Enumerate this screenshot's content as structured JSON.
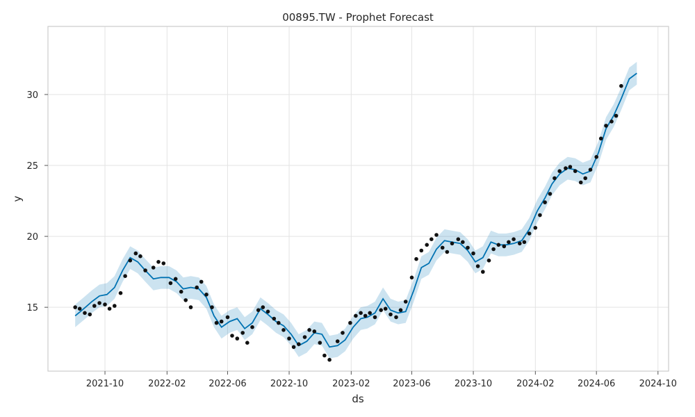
{
  "chart_data": {
    "type": "line",
    "title": "00895.TW - Prophet Forecast",
    "xlabel": "ds",
    "ylabel": "y",
    "xlim": [
      "2021-06-10",
      "2024-10-22"
    ],
    "ylim": [
      10.5,
      34.8
    ],
    "x_ticks": [
      "2021-10",
      "2022-02",
      "2022-06",
      "2022-10",
      "2023-02",
      "2023-06",
      "2023-10",
      "2024-02",
      "2024-06",
      "2024-10"
    ],
    "y_ticks": [
      15,
      20,
      25,
      30
    ],
    "grid": true,
    "colors": {
      "forecast": "#0072b2",
      "observed": "#111111",
      "grid": "#e3e3e3"
    },
    "series": [
      {
        "type": "line",
        "x": [
          "2021-08-03",
          "2021-08-20",
          "2021-09-05",
          "2021-09-20",
          "2021-10-05",
          "2021-10-20",
          "2021-11-05",
          "2021-11-20",
          "2021-12-05",
          "2021-12-20",
          "2022-01-05",
          "2022-01-20",
          "2022-02-05",
          "2022-02-20",
          "2022-03-05",
          "2022-03-20",
          "2022-04-05",
          "2022-04-20",
          "2022-05-05",
          "2022-05-20",
          "2022-06-05",
          "2022-06-20",
          "2022-07-05",
          "2022-07-20",
          "2022-08-05",
          "2022-08-20",
          "2022-09-05",
          "2022-09-20",
          "2022-10-05",
          "2022-10-20",
          "2022-11-05",
          "2022-11-20",
          "2022-12-05",
          "2022-12-20",
          "2023-01-05",
          "2023-01-20",
          "2023-02-05",
          "2023-02-20",
          "2023-03-05",
          "2023-03-20",
          "2023-04-05",
          "2023-04-20",
          "2023-05-05",
          "2023-05-20",
          "2023-06-05",
          "2023-06-20",
          "2023-07-05",
          "2023-07-20",
          "2023-08-05",
          "2023-08-20",
          "2023-09-05",
          "2023-09-20",
          "2023-10-05",
          "2023-10-20",
          "2023-11-05",
          "2023-11-20",
          "2023-12-05",
          "2023-12-20",
          "2024-01-05",
          "2024-01-20",
          "2024-02-05",
          "2024-02-20",
          "2024-03-05",
          "2024-03-20",
          "2024-04-05",
          "2024-04-20",
          "2024-05-05",
          "2024-05-20",
          "2024-06-05",
          "2024-06-20",
          "2024-07-05",
          "2024-07-20",
          "2024-08-05",
          "2024-08-20"
        ],
        "yhat": [
          14.4,
          14.9,
          15.4,
          15.8,
          15.9,
          16.4,
          17.6,
          18.5,
          18.2,
          17.6,
          17.0,
          17.1,
          17.1,
          16.8,
          16.3,
          16.4,
          16.3,
          15.7,
          14.4,
          13.6,
          14.0,
          14.2,
          13.5,
          13.9,
          14.9,
          14.5,
          14.0,
          13.7,
          13.1,
          12.3,
          12.6,
          13.2,
          13.1,
          12.2,
          12.3,
          12.7,
          13.6,
          14.2,
          14.3,
          14.6,
          15.6,
          14.8,
          14.6,
          14.7,
          16.2,
          17.8,
          18.1,
          19.1,
          19.7,
          19.6,
          19.5,
          19.0,
          18.2,
          18.5,
          19.6,
          19.4,
          19.4,
          19.5,
          19.7,
          20.5,
          21.8,
          22.7,
          23.7,
          24.4,
          24.8,
          24.7,
          24.4,
          24.6,
          25.9,
          27.6,
          28.5,
          29.7,
          31.1,
          31.5
        ],
        "yhat_lower": [
          13.6,
          14.1,
          14.6,
          15.0,
          15.1,
          15.6,
          16.8,
          17.7,
          17.4,
          16.8,
          16.2,
          16.3,
          16.3,
          16.0,
          15.5,
          15.6,
          15.5,
          14.9,
          13.6,
          12.8,
          13.2,
          13.4,
          12.7,
          13.1,
          14.1,
          13.7,
          13.2,
          12.9,
          12.3,
          11.5,
          11.8,
          12.4,
          12.3,
          11.4,
          11.5,
          11.9,
          12.8,
          13.4,
          13.5,
          13.8,
          14.8,
          14.0,
          13.8,
          13.9,
          15.4,
          17.0,
          17.3,
          18.3,
          18.9,
          18.8,
          18.7,
          18.2,
          17.4,
          17.7,
          18.8,
          18.6,
          18.6,
          18.7,
          18.9,
          19.7,
          21.0,
          21.9,
          22.9,
          23.6,
          24.0,
          23.9,
          23.6,
          23.8,
          25.1,
          26.8,
          27.7,
          28.9,
          30.3,
          30.7
        ],
        "yhat_upper": [
          15.2,
          15.7,
          16.2,
          16.6,
          16.7,
          17.2,
          18.4,
          19.3,
          19.0,
          18.4,
          17.8,
          17.9,
          17.9,
          17.6,
          17.1,
          17.2,
          17.1,
          16.5,
          15.2,
          14.4,
          14.8,
          15.0,
          14.3,
          14.7,
          15.7,
          15.3,
          14.8,
          14.5,
          13.9,
          13.1,
          13.4,
          14.0,
          13.9,
          13.0,
          13.1,
          13.5,
          14.4,
          15.0,
          15.1,
          15.4,
          16.4,
          15.6,
          15.4,
          15.5,
          17.0,
          18.6,
          18.9,
          19.9,
          20.5,
          20.4,
          20.3,
          19.8,
          19.0,
          19.3,
          20.4,
          20.2,
          20.2,
          20.3,
          20.5,
          21.3,
          22.6,
          23.5,
          24.5,
          25.2,
          25.6,
          25.5,
          25.2,
          25.4,
          26.7,
          28.4,
          29.3,
          30.5,
          31.9,
          32.3
        ]
      },
      {
        "type": "scatter",
        "x": [
          "2021-08-03",
          "2021-08-12",
          "2021-08-22",
          "2021-09-01",
          "2021-09-10",
          "2021-09-20",
          "2021-10-01",
          "2021-10-10",
          "2021-10-20",
          "2021-11-01",
          "2021-11-10",
          "2021-11-20",
          "2021-12-01",
          "2021-12-10",
          "2021-12-20",
          "2022-01-05",
          "2022-01-15",
          "2022-01-25",
          "2022-02-08",
          "2022-02-18",
          "2022-03-01",
          "2022-03-10",
          "2022-03-20",
          "2022-04-01",
          "2022-04-10",
          "2022-04-20",
          "2022-05-01",
          "2022-05-10",
          "2022-05-20",
          "2022-06-01",
          "2022-06-10",
          "2022-06-20",
          "2022-07-01",
          "2022-07-10",
          "2022-07-20",
          "2022-08-01",
          "2022-08-10",
          "2022-08-20",
          "2022-09-01",
          "2022-09-10",
          "2022-09-20",
          "2022-10-01",
          "2022-10-10",
          "2022-10-20",
          "2022-11-01",
          "2022-11-10",
          "2022-11-20",
          "2022-12-01",
          "2022-12-10",
          "2022-12-20",
          "2023-01-05",
          "2023-01-15",
          "2023-01-30",
          "2023-02-10",
          "2023-02-20",
          "2023-03-01",
          "2023-03-10",
          "2023-03-20",
          "2023-04-01",
          "2023-04-10",
          "2023-04-20",
          "2023-05-01",
          "2023-05-10",
          "2023-05-20",
          "2023-06-01",
          "2023-06-10",
          "2023-06-20",
          "2023-07-01",
          "2023-07-10",
          "2023-07-20",
          "2023-08-01",
          "2023-08-10",
          "2023-08-20",
          "2023-09-01",
          "2023-09-10",
          "2023-09-20",
          "2023-10-01",
          "2023-10-10",
          "2023-10-20",
          "2023-11-01",
          "2023-11-10",
          "2023-11-20",
          "2023-12-01",
          "2023-12-10",
          "2023-12-20",
          "2024-01-01",
          "2024-01-10",
          "2024-01-20",
          "2024-02-01",
          "2024-02-10",
          "2024-02-20",
          "2024-03-01",
          "2024-03-10",
          "2024-03-20",
          "2024-04-01",
          "2024-04-10",
          "2024-04-20",
          "2024-05-01",
          "2024-05-10",
          "2024-05-20",
          "2024-06-01",
          "2024-06-10",
          "2024-06-20",
          "2024-07-01",
          "2024-07-10",
          "2024-07-20"
        ],
        "y": [
          15.0,
          14.9,
          14.6,
          14.5,
          15.1,
          15.3,
          15.2,
          14.9,
          15.1,
          16.0,
          17.2,
          18.3,
          18.8,
          18.6,
          17.6,
          17.8,
          18.2,
          18.1,
          16.7,
          17.0,
          16.1,
          15.5,
          15.0,
          16.4,
          16.8,
          15.9,
          15.0,
          13.9,
          14.0,
          14.3,
          13.0,
          12.8,
          13.2,
          12.5,
          13.6,
          14.8,
          15.0,
          14.7,
          14.2,
          13.9,
          13.4,
          12.8,
          12.2,
          12.4,
          12.9,
          13.4,
          13.3,
          12.5,
          11.6,
          11.3,
          12.6,
          13.2,
          13.9,
          14.4,
          14.6,
          14.4,
          14.6,
          14.3,
          14.8,
          14.9,
          14.5,
          14.3,
          14.8,
          15.4,
          17.1,
          18.4,
          19.0,
          19.4,
          19.8,
          20.1,
          19.2,
          18.9,
          19.5,
          19.8,
          19.6,
          19.2,
          18.8,
          17.9,
          17.5,
          18.3,
          19.1,
          19.4,
          19.3,
          19.6,
          19.8,
          19.5,
          19.6,
          20.2,
          20.6,
          21.5,
          22.4,
          23.0,
          24.1,
          24.6,
          24.8,
          24.9,
          24.6,
          23.8,
          24.1,
          24.7,
          25.6,
          26.9,
          27.8,
          28.1,
          28.5,
          30.6
        ]
      }
    ]
  }
}
